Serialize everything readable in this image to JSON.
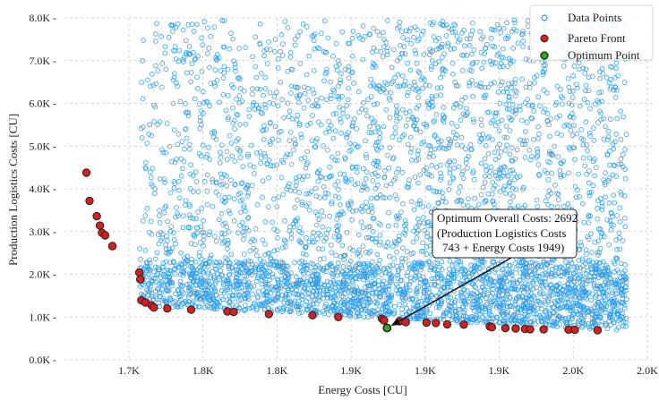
{
  "chart_data": {
    "type": "scatter",
    "xlabel": "Energy Costs [CU]",
    "ylabel": "Production Logistics Costs [CU]",
    "x_tick_labels": [
      "1.7K",
      "1.8K",
      "1.8K",
      "1.9K",
      "1.9K",
      "1.9K",
      "2.0K",
      "2.0K"
    ],
    "y_tick_labels": [
      "0.0K",
      "1.0K",
      "2.0K",
      "3.0K",
      "4.0K",
      "5.0K",
      "6.0K",
      "7.0K",
      "8.0K"
    ],
    "y_ticks": [
      0,
      1000,
      2000,
      3000,
      4000,
      5000,
      6000,
      7000,
      8000
    ],
    "ylim": [
      0,
      8000
    ],
    "grid": true,
    "legend_position": "top-right",
    "series": [
      {
        "name": "Data Points",
        "marker": "hollow-circle",
        "color": "#2b9be8",
        "note_density": "dense cloud over the full x range, densest below 2.0K production costs",
        "sample_points": [
          [
            1713,
            7000
          ],
          [
            1720,
            5500
          ],
          [
            1740,
            3000
          ],
          [
            1770,
            2200
          ],
          [
            1800,
            1500
          ],
          [
            1850,
            2800
          ],
          [
            1880,
            1800
          ],
          [
            1910,
            5200
          ],
          [
            1940,
            4300
          ],
          [
            1960,
            2100
          ],
          [
            1985,
            1700
          ],
          [
            2010,
            2500
          ],
          [
            2045,
            1300
          ],
          [
            2060,
            6500
          ]
        ]
      },
      {
        "name": "Pareto Front",
        "marker": "filled-circle",
        "color": "#d62020",
        "points": [
          [
            1659,
            4380
          ],
          [
            1662,
            3720
          ],
          [
            1669,
            3360
          ],
          [
            1672,
            3140
          ],
          [
            1674,
            2970
          ],
          [
            1677,
            2910
          ],
          [
            1684,
            2660
          ],
          [
            1710,
            2040
          ],
          [
            1711,
            1880
          ],
          [
            1712,
            1390
          ],
          [
            1716,
            1340
          ],
          [
            1722,
            1270
          ],
          [
            1724,
            1220
          ],
          [
            1737,
            1200
          ],
          [
            1760,
            1170
          ],
          [
            1795,
            1130
          ],
          [
            1801,
            1120
          ],
          [
            1835,
            1070
          ],
          [
            1877,
            1040
          ],
          [
            1902,
            1000
          ],
          [
            1944,
            960
          ],
          [
            1946,
            920
          ],
          [
            1961,
            900
          ],
          [
            1967,
            880
          ],
          [
            1987,
            870
          ],
          [
            1996,
            860
          ],
          [
            2007,
            830
          ],
          [
            2023,
            820
          ],
          [
            2048,
            780
          ],
          [
            2050,
            760
          ],
          [
            2063,
            740
          ],
          [
            2073,
            730
          ],
          [
            2082,
            720
          ],
          [
            2087,
            715
          ],
          [
            2100,
            710
          ],
          [
            2124,
            705
          ],
          [
            2130,
            700
          ],
          [
            2152,
            690
          ]
        ]
      },
      {
        "name": "Optimum Point",
        "marker": "filled-circle",
        "color": "#2ea81f",
        "points": [
          [
            1949,
            743
          ]
        ]
      }
    ],
    "legend": [
      "Data Points",
      "Pareto Front",
      "Optimum Point"
    ],
    "annotation": {
      "lines": [
        "Optimum Overall Costs: 2692",
        "(Production Logistics Costs",
        "743 + Energy Costs 1949)"
      ],
      "points_to": [
        1949,
        743
      ]
    }
  }
}
